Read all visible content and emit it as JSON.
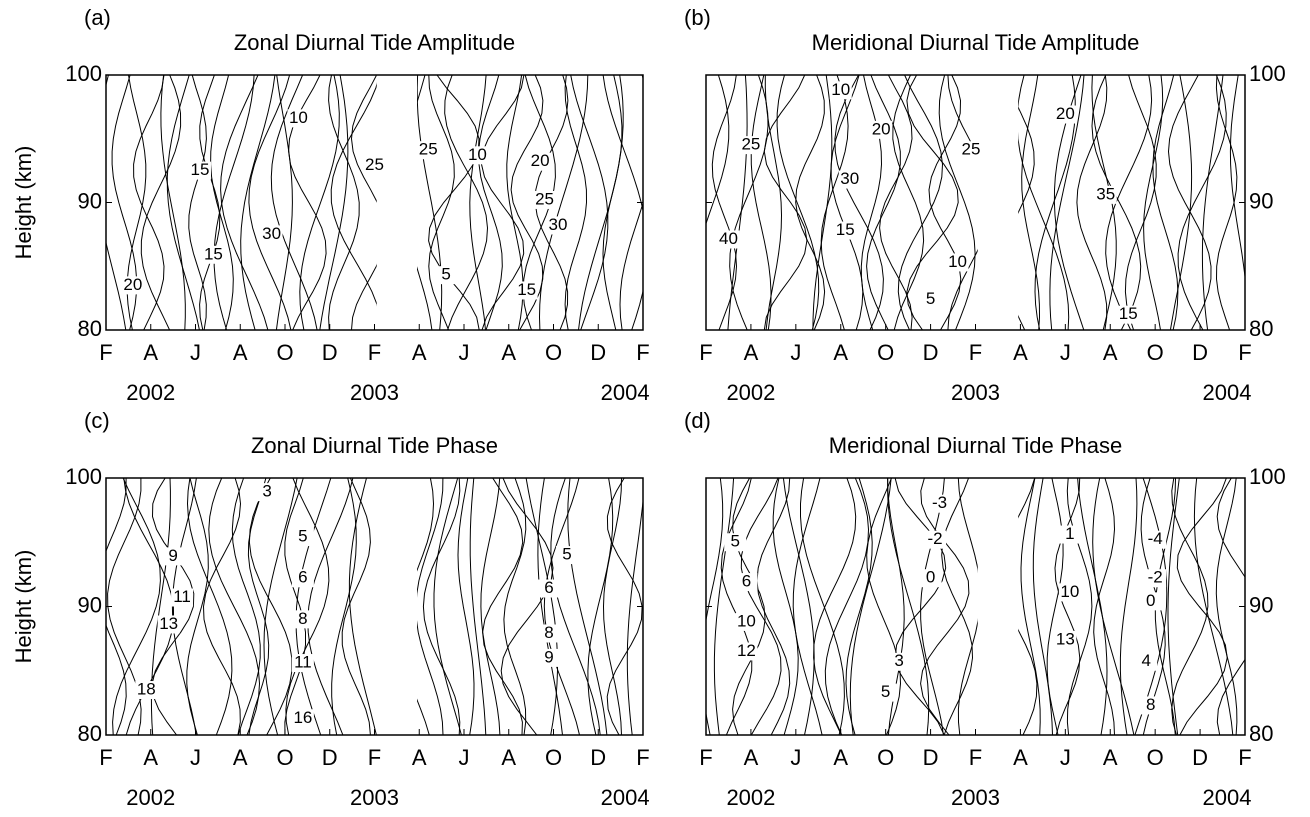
{
  "chart_data": [
    {
      "type": "contour",
      "panel_label": "(a)",
      "title": "Zonal Diurnal Tide Amplitude",
      "ylabel": "Height (km)",
      "categories": [
        "F",
        "A",
        "J",
        "A",
        "O",
        "D",
        "F",
        "A",
        "J",
        "A",
        "O",
        "D",
        "F"
      ],
      "years": [
        "2002",
        "2003",
        "2004"
      ],
      "ylim": [
        80,
        100
      ],
      "yticks": [
        80,
        90,
        100
      ],
      "y_axis_side": "left",
      "contour_labels": [
        {
          "value": 10,
          "x": 4.3,
          "y": 96.6
        },
        {
          "value": 25,
          "x": 6.0,
          "y": 92.9
        },
        {
          "value": 25,
          "x": 7.2,
          "y": 94.1
        },
        {
          "value": 10,
          "x": 8.3,
          "y": 93.7
        },
        {
          "value": 20,
          "x": 9.7,
          "y": 93.2
        },
        {
          "value": 25,
          "x": 9.8,
          "y": 90.2
        },
        {
          "value": 30,
          "x": 10.1,
          "y": 88.2
        },
        {
          "value": 15,
          "x": 2.4,
          "y": 85.9
        },
        {
          "value": 20,
          "x": 0.6,
          "y": 83.5
        },
        {
          "value": 5,
          "x": 7.6,
          "y": 84.3
        },
        {
          "value": 15,
          "x": 9.4,
          "y": 83.1
        },
        {
          "value": 30,
          "x": 3.7,
          "y": 87.5
        },
        {
          "value": 15,
          "x": 2.1,
          "y": 92.5
        }
      ]
    },
    {
      "type": "contour",
      "panel_label": "(b)",
      "title": "Meridional Diurnal Tide Amplitude",
      "categories": [
        "F",
        "A",
        "J",
        "A",
        "O",
        "D",
        "F",
        "A",
        "J",
        "A",
        "O",
        "D",
        "F"
      ],
      "years": [
        "2002",
        "2003",
        "2004"
      ],
      "ylim": [
        80,
        100
      ],
      "yticks": [
        80,
        90,
        100
      ],
      "y_axis_side": "right",
      "contour_labels": [
        {
          "value": 10,
          "x": 3.0,
          "y": 98.8
        },
        {
          "value": 20,
          "x": 3.9,
          "y": 95.7
        },
        {
          "value": 25,
          "x": 1.0,
          "y": 94.5
        },
        {
          "value": 30,
          "x": 3.2,
          "y": 91.8
        },
        {
          "value": 25,
          "x": 5.9,
          "y": 94.1
        },
        {
          "value": 20,
          "x": 8.0,
          "y": 96.9
        },
        {
          "value": 35,
          "x": 8.9,
          "y": 90.6
        },
        {
          "value": 15,
          "x": 3.1,
          "y": 87.8
        },
        {
          "value": 10,
          "x": 5.6,
          "y": 85.3
        },
        {
          "value": 5,
          "x": 5.0,
          "y": 82.4
        },
        {
          "value": 15,
          "x": 9.4,
          "y": 81.2
        },
        {
          "value": 40,
          "x": 0.5,
          "y": 87.1
        }
      ]
    },
    {
      "type": "contour",
      "panel_label": "(c)",
      "title": "Zonal Diurnal Tide Phase",
      "ylabel": "Height (km)",
      "categories": [
        "F",
        "A",
        "J",
        "A",
        "O",
        "D",
        "F",
        "A",
        "J",
        "A",
        "O",
        "D",
        "F"
      ],
      "years": [
        "2002",
        "2003",
        "2004"
      ],
      "ylim": [
        80,
        100
      ],
      "yticks": [
        80,
        90,
        100
      ],
      "y_axis_side": "left",
      "contour_labels": [
        {
          "value": 3,
          "x": 3.6,
          "y": 98.9
        },
        {
          "value": 9,
          "x": 1.5,
          "y": 93.9
        },
        {
          "value": 5,
          "x": 4.4,
          "y": 95.4
        },
        {
          "value": 6,
          "x": 4.4,
          "y": 92.2
        },
        {
          "value": 8,
          "x": 4.4,
          "y": 89.0
        },
        {
          "value": 11,
          "x": 1.7,
          "y": 90.7
        },
        {
          "value": 13,
          "x": 1.4,
          "y": 88.6
        },
        {
          "value": 11,
          "x": 4.4,
          "y": 85.6
        },
        {
          "value": 16,
          "x": 4.4,
          "y": 81.3
        },
        {
          "value": 18,
          "x": 0.9,
          "y": 83.5
        },
        {
          "value": 5,
          "x": 10.3,
          "y": 94.0
        },
        {
          "value": 6,
          "x": 9.9,
          "y": 91.4
        },
        {
          "value": 8,
          "x": 9.9,
          "y": 87.9
        },
        {
          "value": 9,
          "x": 9.9,
          "y": 86.0
        }
      ]
    },
    {
      "type": "contour",
      "panel_label": "(d)",
      "title": "Meridional Diurnal Tide Phase",
      "categories": [
        "F",
        "A",
        "J",
        "A",
        "O",
        "D",
        "F",
        "A",
        "J",
        "A",
        "O",
        "D",
        "F"
      ],
      "years": [
        "2002",
        "2003",
        "2004"
      ],
      "ylim": [
        80,
        100
      ],
      "yticks": [
        80,
        90,
        100
      ],
      "y_axis_side": "right",
      "contour_labels": [
        {
          "value": 5,
          "x": 0.65,
          "y": 95.0
        },
        {
          "value": 6,
          "x": 0.9,
          "y": 91.9
        },
        {
          "value": 10,
          "x": 0.9,
          "y": 88.8
        },
        {
          "value": 12,
          "x": 0.9,
          "y": 86.5
        },
        {
          "value": -3,
          "x": 5.2,
          "y": 98.0
        },
        {
          "value": -2,
          "x": 5.1,
          "y": 95.2
        },
        {
          "value": 0,
          "x": 5.0,
          "y": 92.2
        },
        {
          "value": 3,
          "x": 4.3,
          "y": 85.7
        },
        {
          "value": 5,
          "x": 4.0,
          "y": 83.3
        },
        {
          "value": 1,
          "x": 8.1,
          "y": 95.6
        },
        {
          "value": 10,
          "x": 8.1,
          "y": 91.1
        },
        {
          "value": 13,
          "x": 8.0,
          "y": 87.4
        },
        {
          "value": -4,
          "x": 10.0,
          "y": 95.2
        },
        {
          "value": -2,
          "x": 10.0,
          "y": 92.2
        },
        {
          "value": 0,
          "x": 9.9,
          "y": 90.4
        },
        {
          "value": 4,
          "x": 9.8,
          "y": 85.7
        },
        {
          "value": 8,
          "x": 9.9,
          "y": 82.3
        }
      ]
    }
  ]
}
